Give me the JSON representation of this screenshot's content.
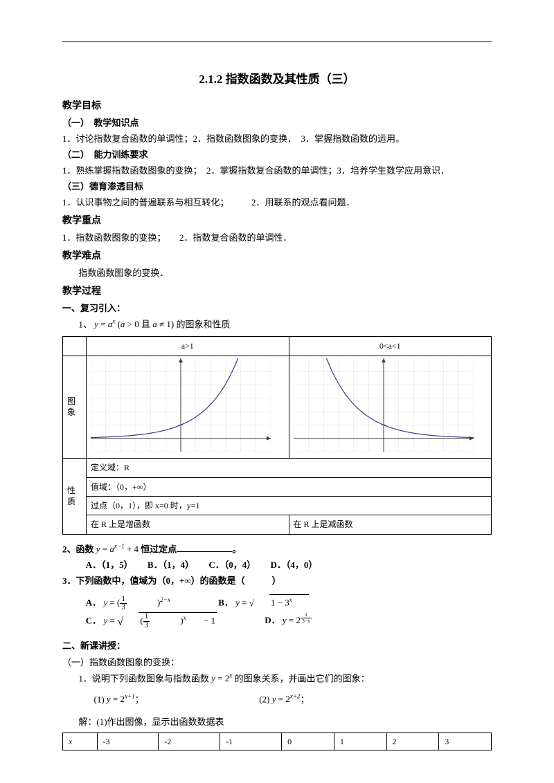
{
  "title": "2.1.2 指数函数及其性质（三）",
  "sections": {
    "goal": "教学目标",
    "goal1_h": "（一）　教学知识点",
    "goal1_t": "1．讨论指数复合函数的单调性；2．指数函数图象的变换．　3．掌握指数函数的运用。",
    "goal2_h": "（二）　能力训练要求",
    "goal2_t": "1．熟练掌握指数函数图象的变换；　2．掌握指数复合函数的单调性；3．培养学生数学应用意识．",
    "goal3_h": "（三）德育渗透目标",
    "goal3_t": "1．认识事物之间的普遍联系与相互转化；　　　2．用联系的观点看问题．",
    "keypoint_h": "教学重点",
    "keypoint_t": "1．指数函数图象的变换；　　2．指数复合函数的单调性．",
    "hard_h": "教学难点",
    "hard_t": "指数函数图象的变换．",
    "proc_h": "教学过程",
    "review_h": "一、复习引入：",
    "review1": "1、",
    "review1_formula": "y = aˣ (a > 0 且 a ≠ 1) 的图象和性质",
    "q2": "2、函数",
    "q2_formula": "y = aˣ⁻¹ + 4",
    "q2_tail": "恒过定点",
    "q2_end": "。",
    "q2_choices": {
      "A": "A．（1，5）",
      "B": "B．（1，4）",
      "C": "C．（0，4）",
      "D": "D．（4，0）"
    },
    "q3": "3．下列函数中，值域为（0，+∞）的函数是（　　　）",
    "q3A_pre": "A．",
    "q3B_pre": "B．",
    "q3C_pre": "C．",
    "q3D_pre": "D．",
    "new_h": "二、新课讲授：",
    "new_sub": "（一）指数函数图象的变换：",
    "new1": "1．说明下列函数图象与指数函数",
    "new1_mid": "的图象关系，并画出它们的图象：",
    "new1_f": "y = 2ˣ",
    "new1_1": "(1) ",
    "new1_1f": "y = 2ˣ⁺¹",
    "new1_1e": "；",
    "new1_2": "(2) ",
    "new1_2f": "y = 2ˣ⁺²",
    "new1_2e": "；",
    "sol": "解：(1)作出图像，显示出函数数据表"
  },
  "prop_table": {
    "col_a": "a>1",
    "col_b": "0<a<1",
    "row_graph": "图象",
    "row_prop": "性质",
    "domain": "定义域：R",
    "range": "值域：（0，+∞）",
    "point": "过点（0，1），即 x=0 时，y=1",
    "mono_a": "在 R 上是增函数",
    "mono_b": "在 R 上是减函数"
  },
  "charts": {
    "increasing": {
      "bg": "#ffffff",
      "grid": "#dedede",
      "axis": "#3a3a3a",
      "curve": "#3a3a88",
      "xrange": [
        -6,
        6
      ],
      "yrange": [
        -1,
        6
      ],
      "type": "exp",
      "a": 1.6
    },
    "decreasing": {
      "bg": "#ffffff",
      "grid": "#dedede",
      "axis": "#3a3a3a",
      "curve": "#3a3a88",
      "xrange": [
        -6,
        6
      ],
      "yrange": [
        -1,
        6
      ],
      "type": "exp",
      "a": 0.625
    }
  },
  "data_table": {
    "head": "x",
    "vals": [
      "-3",
      "-2",
      "-1",
      "0",
      "1",
      "2",
      "3"
    ]
  }
}
